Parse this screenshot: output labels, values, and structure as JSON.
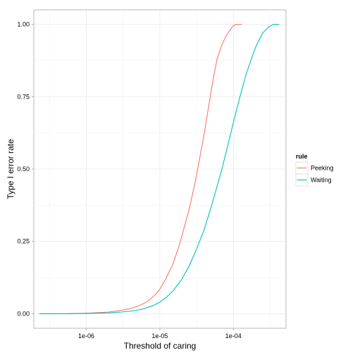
{
  "chart_data": {
    "type": "line",
    "xlabel": "Threshold of caring",
    "ylabel": "Type I error rate",
    "x_scale": "log10",
    "xlim": [
      1.93e-07,
      0.00052
    ],
    "ylim": [
      -0.05,
      1.05
    ],
    "x_ticks": [
      1e-06,
      1e-05,
      0.0001
    ],
    "x_tick_labels": [
      "1e-06",
      "1e-05",
      "1e-04"
    ],
    "y_ticks": [
      0,
      0.25,
      0.5,
      0.75,
      1
    ],
    "y_tick_labels": [
      "0.00",
      "0.25",
      "0.50",
      "0.75",
      "1.00"
    ],
    "grid": true,
    "legend": {
      "title": "rule",
      "position": "right"
    },
    "series": [
      {
        "name": "Peeking",
        "color": "#F8766D",
        "x": [
          2.3e-07,
          5e-07,
          1e-06,
          1.5e-06,
          2e-06,
          3e-06,
          4e-06,
          5e-06,
          6e-06,
          7e-06,
          8e-06,
          9e-06,
          1e-05,
          1.2e-05,
          1.5e-05,
          1.8e-05,
          2e-05,
          2.5e-05,
          3e-05,
          3.5e-05,
          4e-05,
          4.5e-05,
          5e-05,
          5.5e-05,
          6e-05,
          7e-05,
          8e-05,
          9e-05,
          0.0001,
          0.00011,
          0.00013
        ],
        "y": [
          0.0,
          0.0,
          0.002,
          0.004,
          0.006,
          0.012,
          0.018,
          0.026,
          0.035,
          0.045,
          0.058,
          0.07,
          0.085,
          0.12,
          0.17,
          0.23,
          0.27,
          0.36,
          0.45,
          0.54,
          0.62,
          0.7,
          0.77,
          0.83,
          0.88,
          0.93,
          0.96,
          0.98,
          0.995,
          1.0,
          1.0
        ]
      },
      {
        "name": "Waiting",
        "color": "#00BFC4",
        "x": [
          2.3e-07,
          5e-07,
          1e-06,
          2e-06,
          3e-06,
          4e-06,
          5e-06,
          6e-06,
          8e-06,
          1e-05,
          1.2e-05,
          1.5e-05,
          2e-05,
          2.5e-05,
          3e-05,
          4e-05,
          5e-05,
          6e-05,
          7e-05,
          8e-05,
          0.0001,
          0.00012,
          0.00015,
          0.0002,
          0.00025,
          0.0003,
          0.00035,
          0.00042
        ],
        "y": [
          0.0,
          0.0,
          0.001,
          0.003,
          0.006,
          0.009,
          0.013,
          0.017,
          0.028,
          0.04,
          0.055,
          0.078,
          0.12,
          0.165,
          0.21,
          0.29,
          0.37,
          0.44,
          0.5,
          0.56,
          0.66,
          0.74,
          0.83,
          0.92,
          0.97,
          0.99,
          1.0,
          1.0
        ]
      }
    ]
  }
}
